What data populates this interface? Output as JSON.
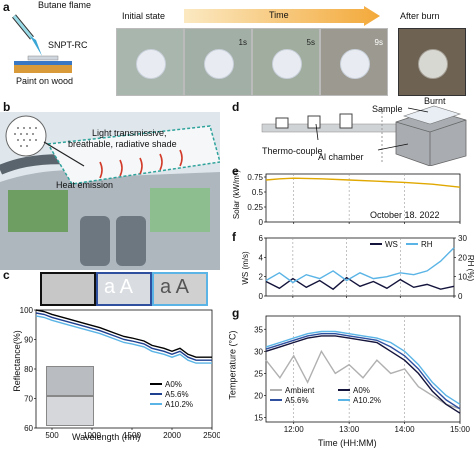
{
  "panel_a": {
    "label": "a",
    "butane_flame": "Butane flame",
    "snpt_rc": "SNPT-RC",
    "paint_on_wood": "Paint on wood",
    "initial_state": "Initial state",
    "time": "Time",
    "after_burn": "After burn",
    "t1": "1s",
    "t2": "5s",
    "t3": "9s",
    "burnt": "Burnt"
  },
  "panel_b": {
    "label": "b",
    "shade_line1": "Light transmissive,",
    "shade_line2": "breathable, radiative shade",
    "heat_emission": "Heat emission"
  },
  "panel_c": {
    "label": "c",
    "xlabel": "Wavelength  (nm)",
    "ylabel": "Reflectance(%)"
  },
  "panel_d": {
    "label": "d",
    "sample": "Sample",
    "thermo_couple": "Thermo-couple",
    "al_chamber": "Al chamber"
  },
  "panel_e": {
    "label": "e",
    "ylabel": "Solar (kW/m²)",
    "date": "October 18. 2022"
  },
  "panel_f": {
    "label": "f"
  },
  "panel_g": {
    "label": "g",
    "ylabel": "Temperature (°C)",
    "xlabel": "Time (HH:MM)"
  },
  "chart_data": [
    {
      "type": "line",
      "id": "c",
      "xlabel": "Wavelength  (nm)",
      "ylabel": "Reflectance(%)",
      "xlim": [
        300,
        2500
      ],
      "ylim": [
        60,
        100
      ],
      "xticks": [
        500,
        1000,
        1500,
        2000,
        2500
      ],
      "yticks": [
        60,
        70,
        80,
        90,
        100
      ],
      "legend": "bottom-right",
      "series": [
        {
          "name": "A0%",
          "color": "#000000",
          "x": [
            300,
            400,
            500,
            700,
            900,
            1100,
            1300,
            1400,
            1500,
            1650,
            1750,
            1900,
            2000,
            2100,
            2200,
            2300,
            2400,
            2500
          ],
          "y": [
            100,
            99.5,
            98.5,
            97,
            95.5,
            94,
            92,
            91,
            90.5,
            89.5,
            88,
            87,
            86,
            87,
            85,
            84,
            84,
            84
          ]
        },
        {
          "name": "A5.6%",
          "color": "#1f3f8f",
          "x": [
            300,
            400,
            500,
            700,
            900,
            1100,
            1300,
            1400,
            1500,
            1650,
            1750,
            1900,
            2000,
            2100,
            2200,
            2300,
            2400,
            2500
          ],
          "y": [
            99,
            98.5,
            97.5,
            96,
            94.5,
            93,
            91,
            90,
            89.5,
            88.5,
            87,
            86,
            85,
            86,
            84,
            83,
            83,
            83
          ]
        },
        {
          "name": "A10.2%",
          "color": "#5ab4e6",
          "x": [
            300,
            400,
            500,
            700,
            900,
            1100,
            1300,
            1400,
            1500,
            1650,
            1750,
            1900,
            2000,
            2100,
            2200,
            2300,
            2400,
            2500
          ],
          "y": [
            98,
            97.5,
            96.5,
            95,
            93.5,
            92,
            90,
            89,
            88.5,
            87.5,
            86,
            85,
            84,
            85,
            83,
            82,
            82,
            82
          ]
        }
      ]
    },
    {
      "type": "line",
      "id": "e",
      "ylabel": "Solar (kW/m²)",
      "xlim": [
        11.5,
        15.0
      ],
      "ylim": [
        0.0,
        0.8
      ],
      "yticks": [
        0.0,
        0.25,
        0.5,
        0.75
      ],
      "annotation": "October 18. 2022",
      "series": [
        {
          "name": "",
          "color": "#e0a800",
          "x": [
            11.5,
            11.75,
            12.0,
            12.5,
            13.0,
            13.5,
            14.0,
            14.5,
            15.0
          ],
          "y": [
            0.7,
            0.72,
            0.73,
            0.72,
            0.7,
            0.68,
            0.66,
            0.63,
            0.58
          ]
        }
      ]
    },
    {
      "type": "line",
      "id": "f",
      "ylabel": "WS (m/s)",
      "y2label": "RH (%)",
      "xlim": [
        11.5,
        15.0
      ],
      "ylim": [
        0,
        6
      ],
      "yticks": [
        0,
        2,
        4,
        6
      ],
      "y2lim": [
        0,
        30
      ],
      "y2ticks": [
        0,
        10,
        20,
        30
      ],
      "legend": "top-right",
      "series": [
        {
          "name": "WS",
          "color": "#14143c",
          "x": [
            11.5,
            11.75,
            12.0,
            12.25,
            12.5,
            12.75,
            13.0,
            13.25,
            13.5,
            13.75,
            14.0,
            14.25,
            14.5,
            14.75,
            15.0
          ],
          "y": [
            1.5,
            0.8,
            1.8,
            0.9,
            1.6,
            0.7,
            1.9,
            1.0,
            1.5,
            0.8,
            1.7,
            0.9,
            1.2,
            0.7,
            1.0
          ]
        },
        {
          "name": "RH",
          "color": "#5ab4e6",
          "axis": "right",
          "x": [
            11.5,
            11.75,
            12.0,
            12.25,
            12.5,
            12.75,
            13.0,
            13.25,
            13.5,
            13.75,
            14.0,
            14.25,
            14.5,
            14.75,
            15.0
          ],
          "y": [
            8,
            12,
            7,
            11,
            9,
            13,
            8,
            12,
            9,
            10,
            12,
            11,
            13,
            18,
            25
          ]
        }
      ]
    },
    {
      "type": "line",
      "id": "g",
      "ylabel": "Temperature (°C)",
      "xlabel": "Time (HH:MM)",
      "xlim": [
        11.5,
        15.0
      ],
      "ylim": [
        14,
        38
      ],
      "xticks": [
        "12:00",
        "13:00",
        "14:00",
        "15:00"
      ],
      "yticks": [
        15,
        20,
        25,
        30,
        35
      ],
      "legend": "bottom-left",
      "series": [
        {
          "name": "Ambient",
          "color": "#b0b0b0",
          "x": [
            11.5,
            11.75,
            12.0,
            12.25,
            12.5,
            12.75,
            13.0,
            13.25,
            13.5,
            13.75,
            14.0,
            14.25,
            14.5,
            14.75,
            15.0
          ],
          "y": [
            28,
            24,
            29,
            23,
            30,
            25,
            27,
            24,
            28,
            25,
            26,
            22,
            20,
            18,
            17
          ]
        },
        {
          "name": "A0%",
          "color": "#14143c",
          "x": [
            11.5,
            11.75,
            12.0,
            12.25,
            12.5,
            12.75,
            13.0,
            13.25,
            13.5,
            13.75,
            14.0,
            14.25,
            14.5,
            14.75,
            15.0
          ],
          "y": [
            30,
            31,
            32,
            33,
            33.5,
            33.5,
            33,
            32.5,
            32,
            30,
            28,
            25,
            21,
            18,
            16
          ]
        },
        {
          "name": "A5.6%",
          "color": "#2f4f9f",
          "x": [
            11.5,
            11.75,
            12.0,
            12.25,
            12.5,
            12.75,
            13.0,
            13.25,
            13.5,
            13.75,
            14.0,
            14.25,
            14.5,
            14.75,
            15.0
          ],
          "y": [
            30.5,
            31.5,
            32.5,
            33.5,
            34,
            34,
            33.5,
            33,
            32.5,
            31,
            29,
            26,
            22,
            19,
            17
          ]
        },
        {
          "name": "A10.2%",
          "color": "#5ab4e6",
          "x": [
            11.5,
            11.75,
            12.0,
            12.25,
            12.5,
            12.75,
            13.0,
            13.25,
            13.5,
            13.75,
            14.0,
            14.25,
            14.5,
            14.75,
            15.0
          ],
          "y": [
            31,
            32,
            33,
            34,
            34.5,
            34.5,
            34,
            33.5,
            33,
            32,
            30,
            27,
            23,
            20,
            18
          ]
        }
      ]
    }
  ]
}
